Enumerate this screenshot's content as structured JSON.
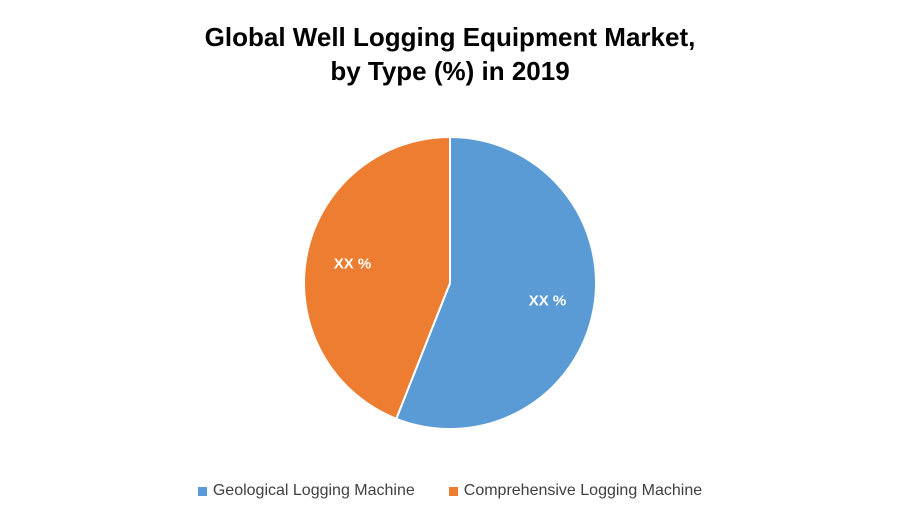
{
  "chart_data": {
    "type": "pie",
    "title_lines": [
      "Global Well Logging Equipment Market,",
      "by Type (%) in 2019"
    ],
    "categories": [
      "Geological Logging Machine",
      "Comprehensive Logging Machine"
    ],
    "values": [
      56,
      44
    ],
    "data_labels": [
      "XX %",
      "XX %"
    ],
    "colors": [
      "#5B9BD5",
      "#ED7D31"
    ],
    "start_angle_deg": 0,
    "direction": "clockwise",
    "legend_position": "bottom"
  }
}
